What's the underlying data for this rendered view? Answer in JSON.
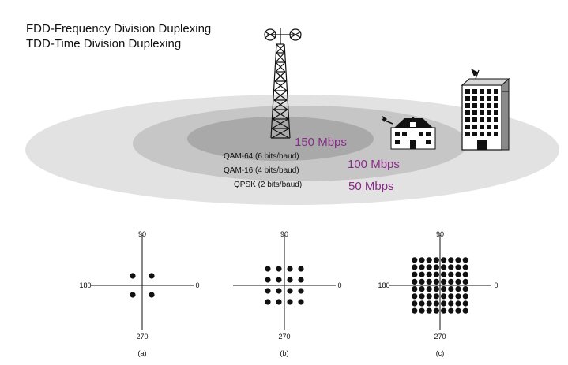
{
  "header": {
    "line1": "FDD-Frequency Division Duplexing",
    "line2": "TDD-Time Division Duplexing"
  },
  "zones": [
    {
      "modulation": "QAM-64 (6 bits/baud)",
      "rate": "150 Mbps",
      "fill": "#a9a9a9"
    },
    {
      "modulation": "QAM-16 (4 bits/baud)",
      "rate": "100 Mbps",
      "fill": "#c6c6c6"
    },
    {
      "modulation": "QPSK (2 bits/baud)",
      "rate": "50 Mbps",
      "fill": "#e2e2e2"
    }
  ],
  "rate_color": "#8b2a8b",
  "icons": [
    "cell-tower-icon",
    "house-icon",
    "office-building-icon"
  ],
  "constellations": [
    {
      "caption": "(a)",
      "points_per_side": 2,
      "angles": {
        "top": "90",
        "left": "180",
        "right": "0",
        "bottom": "270"
      }
    },
    {
      "caption": "(b)",
      "points_per_side": 4,
      "angles": {
        "top": "90",
        "left": "",
        "right": "0",
        "bottom": "270"
      }
    },
    {
      "caption": "(c)",
      "points_per_side": 8,
      "angles": {
        "top": "90",
        "left": "180",
        "right": "0",
        "bottom": "270"
      }
    }
  ]
}
